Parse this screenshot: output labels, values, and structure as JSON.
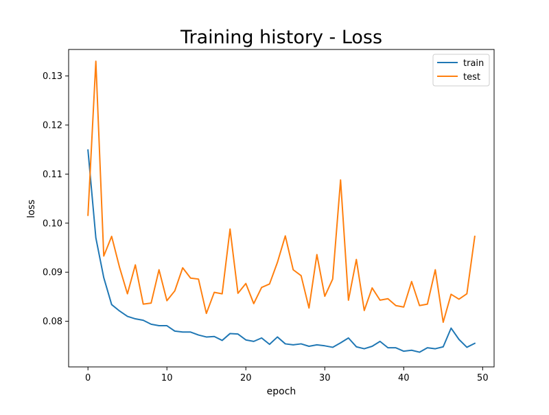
{
  "chart_data": {
    "type": "line",
    "title": "Training history - Loss",
    "xlabel": "epoch",
    "ylabel": "loss",
    "xlim": [
      -2.45,
      51.45
    ],
    "ylim": [
      0.0707,
      0.1354
    ],
    "xticks": [
      0,
      10,
      20,
      30,
      40,
      50
    ],
    "yticks": [
      0.08,
      0.09,
      0.1,
      0.11,
      0.12,
      0.13
    ],
    "xtick_labels": [
      "0",
      "10",
      "20",
      "30",
      "40",
      "50"
    ],
    "ytick_labels": [
      "0.08",
      "0.09",
      "0.10",
      "0.11",
      "0.12",
      "0.13"
    ],
    "grid": false,
    "legend": "top-right",
    "x": [
      0,
      1,
      2,
      3,
      4,
      5,
      6,
      7,
      8,
      9,
      10,
      11,
      12,
      13,
      14,
      15,
      16,
      17,
      18,
      19,
      20,
      21,
      22,
      23,
      24,
      25,
      26,
      27,
      28,
      29,
      30,
      31,
      32,
      33,
      34,
      35,
      36,
      37,
      38,
      39,
      40,
      41,
      42,
      43,
      44,
      45,
      46,
      47,
      48,
      49
    ],
    "series": [
      {
        "name": "train",
        "color": "#1f77b4",
        "values": [
          0.1149,
          0.097,
          0.0889,
          0.0834,
          0.0821,
          0.081,
          0.0805,
          0.0802,
          0.0794,
          0.0791,
          0.0791,
          0.078,
          0.0778,
          0.0778,
          0.0772,
          0.0768,
          0.0769,
          0.0761,
          0.0775,
          0.0774,
          0.0762,
          0.0759,
          0.0766,
          0.0753,
          0.0768,
          0.0754,
          0.0752,
          0.0754,
          0.0749,
          0.0752,
          0.075,
          0.0747,
          0.0756,
          0.0766,
          0.0748,
          0.0744,
          0.0749,
          0.0759,
          0.0746,
          0.0746,
          0.0739,
          0.0741,
          0.0737,
          0.0746,
          0.0744,
          0.0748,
          0.0786,
          0.0763,
          0.0747,
          0.0755
        ]
      },
      {
        "name": "test",
        "color": "#ff7f0e",
        "values": [
          0.1016,
          0.133,
          0.0933,
          0.0973,
          0.091,
          0.0856,
          0.0915,
          0.0835,
          0.0837,
          0.0905,
          0.0842,
          0.0862,
          0.0909,
          0.0888,
          0.0886,
          0.0816,
          0.0859,
          0.0856,
          0.0988,
          0.0857,
          0.0877,
          0.0836,
          0.0869,
          0.0876,
          0.092,
          0.0974,
          0.0905,
          0.0893,
          0.0827,
          0.0936,
          0.0851,
          0.0886,
          0.1088,
          0.0843,
          0.0926,
          0.0822,
          0.0868,
          0.0843,
          0.0846,
          0.0832,
          0.0829,
          0.0881,
          0.0832,
          0.0835,
          0.0905,
          0.0798,
          0.0855,
          0.0845,
          0.0856,
          0.0973
        ]
      }
    ]
  }
}
